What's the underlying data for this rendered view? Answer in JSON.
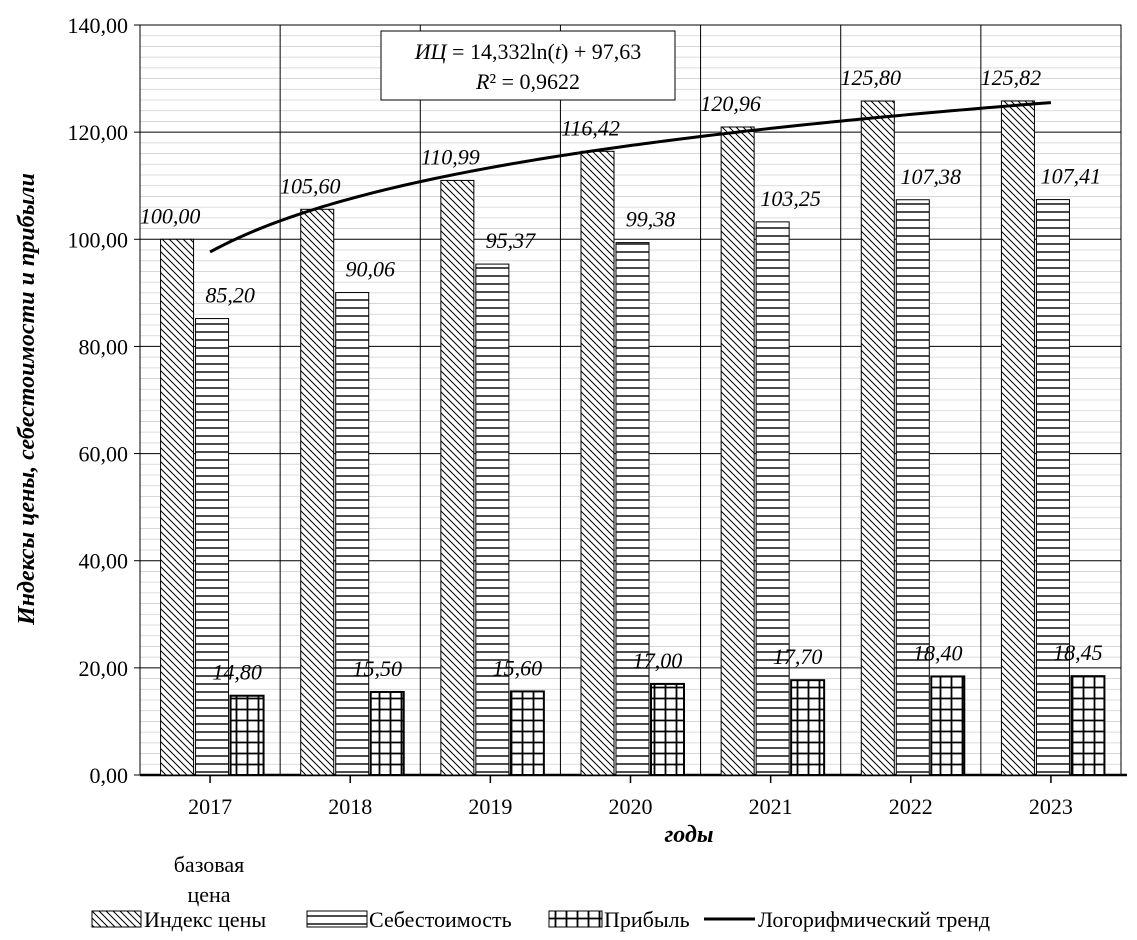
{
  "chart_data": {
    "type": "bar",
    "categories": [
      "2017",
      "2018",
      "2019",
      "2020",
      "2021",
      "2022",
      "2023"
    ],
    "category_sublabel": [
      "базовая",
      "цена"
    ],
    "series": [
      {
        "name": "Индекс цены",
        "values": [
          100.0,
          105.6,
          110.99,
          116.42,
          120.96,
          125.8,
          125.82
        ],
        "labels": [
          "100,00",
          "105,60",
          "110,99",
          "116,42",
          "120,96",
          "125,80",
          "125,82"
        ],
        "pattern": "diagonal"
      },
      {
        "name": "Себестоимость",
        "values": [
          85.2,
          90.06,
          95.37,
          99.38,
          103.25,
          107.38,
          107.41
        ],
        "labels": [
          "85,20",
          "90,06",
          "95,37",
          "99,38",
          "103,25",
          "107,38",
          "107,41"
        ],
        "pattern": "horizontal"
      },
      {
        "name": "Прибыль",
        "values": [
          14.8,
          15.5,
          15.6,
          17.0,
          17.7,
          18.4,
          18.45
        ],
        "labels": [
          "14,80",
          "15,50",
          "15,60",
          "17,00",
          "17,70",
          "18,40",
          "18,45"
        ],
        "pattern": "grid"
      }
    ],
    "trend": {
      "name": "Логорифмический тренд",
      "type": "logarithmic",
      "a": 14.332,
      "b": 97.63,
      "equation_prefix": "ИЦ",
      "equation_body": " = 14,332ln(",
      "equation_var": "t",
      "equation_suffix": ") + 97,63",
      "r2_var": "R",
      "r2_rest": "² = 0,9622"
    },
    "xlabel": "годы",
    "ylabel": "Индексы цены, себестоимости и прибыли",
    "ylim": [
      0,
      140
    ],
    "yticks": [
      "0,00",
      "20,00",
      "40,00",
      "60,00",
      "80,00",
      "100,00",
      "120,00",
      "140,00"
    ],
    "grid": true,
    "legend_position": "bottom"
  }
}
